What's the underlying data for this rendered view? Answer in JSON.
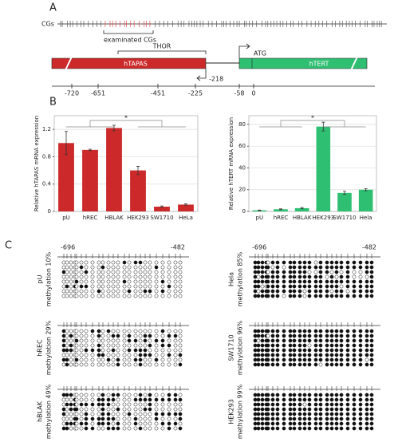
{
  "panels": [
    "A",
    "B",
    "C"
  ],
  "diagram": {
    "cgs_label": "CGs",
    "examined_label": "examinated CGs",
    "thor_label": "THOR",
    "tapas_label": "hTAPAS",
    "tert_label": "hTERT",
    "atg_label": "ATG",
    "tss_label": "-218",
    "positions": [
      "-720",
      "-651",
      "-451",
      "-225",
      "-58",
      "0"
    ]
  },
  "chart_data": [
    {
      "type": "bar",
      "y_label": "Relative hTAPAS mRNA expression",
      "annotation": "*",
      "categories": [
        "pU",
        "hREC",
        "HBLAK",
        "HEK293",
        "SW1710",
        "HeLa"
      ],
      "values": [
        1.0,
        0.9,
        1.22,
        0.6,
        0.07,
        0.1
      ],
      "errors": [
        0.17,
        0.01,
        0.04,
        0.06,
        0.01,
        0.01
      ],
      "color": "#cc2a2a",
      "ylim": [
        0,
        1.4
      ],
      "yticks": [
        0,
        0.4,
        0.8,
        1.2
      ],
      "grid": true
    },
    {
      "type": "bar",
      "y_label": "Relative hTERT mRNA expression",
      "annotation": "*",
      "categories": [
        "pU",
        "hREC",
        "HBLAK",
        "HEK293",
        "SW1710",
        "Hela"
      ],
      "values": [
        1,
        2,
        3,
        78,
        17,
        20
      ],
      "errors": [
        0.3,
        0.4,
        0.6,
        4,
        1.5,
        1
      ],
      "color": "#2fbf72",
      "ylim": [
        0,
        88
      ],
      "yticks": [
        0,
        20,
        40,
        60,
        80
      ],
      "grid": true
    }
  ],
  "methylation": {
    "start_label": "-696",
    "end_label": "-482",
    "samples": [
      {
        "name": "pU",
        "label": "methylation 10%",
        "percent": 10
      },
      {
        "name": "hREC",
        "label": "methylation 29%",
        "percent": 29
      },
      {
        "name": "hBLAK",
        "label": "methylation 49%",
        "percent": 49
      },
      {
        "name": "Hela",
        "label": "methylation 85%",
        "percent": 85
      },
      {
        "name": "SW1710",
        "label": "methylation 96%",
        "percent": 96
      },
      {
        "name": "HEK293",
        "label": "methylation 99%",
        "percent": 99
      }
    ]
  }
}
